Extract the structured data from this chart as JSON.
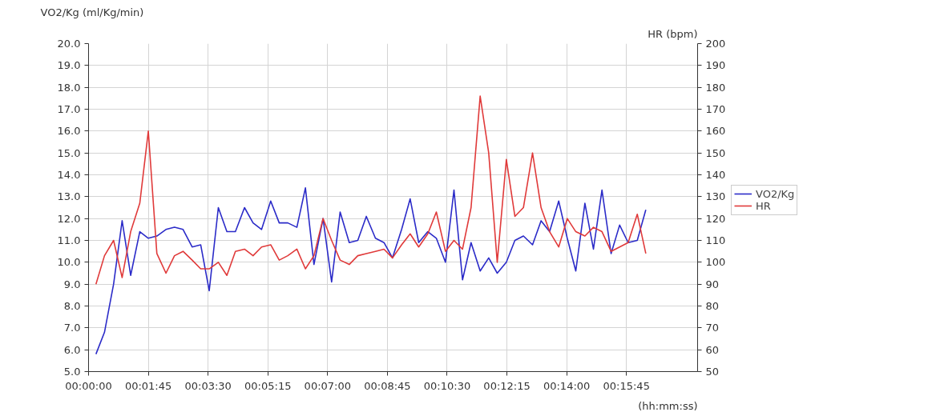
{
  "chart_data": {
    "type": "line",
    "xlabel": "(hh:mm:ss)",
    "ylabel": "VO2/Kg (ml/Kg/min)",
    "y2label": "HR (bpm)",
    "x": [
      13,
      28,
      44,
      59,
      74,
      90,
      105,
      120,
      136,
      151,
      166,
      182,
      197,
      212,
      228,
      243,
      258,
      274,
      289,
      304,
      320,
      335,
      350,
      366,
      381,
      396,
      412,
      427,
      442,
      458,
      473,
      488,
      504,
      519,
      534,
      550,
      565,
      580,
      596,
      611,
      627,
      642,
      657,
      672,
      688,
      703,
      718,
      734,
      749,
      764,
      780,
      795,
      810,
      826,
      841,
      856,
      872,
      887,
      902,
      918,
      933,
      948,
      964,
      979
    ],
    "series": [
      {
        "name": "VO2/Kg",
        "color": "#2b2bc8",
        "values": [
          5.8,
          6.8,
          9.0,
          11.9,
          9.4,
          11.4,
          11.1,
          11.2,
          11.5,
          11.6,
          11.5,
          10.7,
          10.8,
          8.7,
          12.5,
          11.4,
          11.4,
          12.5,
          11.8,
          11.5,
          12.8,
          11.8,
          11.8,
          11.6,
          13.4,
          9.9,
          12.0,
          9.1,
          12.3,
          10.9,
          11.0,
          12.1,
          11.1,
          10.9,
          10.2,
          11.5,
          12.9,
          10.9,
          11.4,
          11.1,
          10.0,
          13.3,
          9.2,
          10.9,
          9.6,
          10.2,
          9.5,
          10.0,
          11.0,
          11.2,
          10.8,
          11.9,
          11.4,
          12.8,
          11.1,
          9.6,
          12.7,
          10.6,
          13.3,
          10.4,
          11.7,
          10.9,
          11.0,
          12.4
        ]
      },
      {
        "name": "HR",
        "color": "#e03a3a",
        "axis": "y2",
        "values": [
          90,
          103,
          110,
          93,
          114,
          127,
          160,
          104,
          95,
          103,
          105,
          101,
          97,
          97,
          100,
          94,
          105,
          106,
          103,
          107,
          108,
          101,
          103,
          106,
          97,
          103,
          120,
          110,
          101,
          99,
          103,
          104,
          105,
          106,
          102,
          108,
          113,
          107,
          113,
          123,
          105,
          110,
          106,
          125,
          176,
          150,
          100,
          147,
          121,
          125,
          150,
          125,
          114,
          107,
          120,
          114,
          112,
          116,
          114,
          105,
          107,
          109,
          122,
          104
        ]
      }
    ],
    "xlim": [
      0,
      1070
    ],
    "xticks": [
      {
        "value": 0,
        "label": "00:00:00"
      },
      {
        "value": 105,
        "label": "00:01:45"
      },
      {
        "value": 210,
        "label": "00:03:30"
      },
      {
        "value": 315,
        "label": "00:05:15"
      },
      {
        "value": 420,
        "label": "00:07:00"
      },
      {
        "value": 525,
        "label": "00:08:45"
      },
      {
        "value": 630,
        "label": "00:10:30"
      },
      {
        "value": 735,
        "label": "00:12:15"
      },
      {
        "value": 840,
        "label": "00:14:00"
      },
      {
        "value": 945,
        "label": "00:15:45"
      }
    ],
    "ylim": [
      5,
      20
    ],
    "yticks": [
      {
        "value": 5,
        "label": "5.0"
      },
      {
        "value": 6,
        "label": "6.0"
      },
      {
        "value": 7,
        "label": "7.0"
      },
      {
        "value": 8,
        "label": "8.0"
      },
      {
        "value": 9,
        "label": "9.0"
      },
      {
        "value": 10,
        "label": "10.0"
      },
      {
        "value": 11,
        "label": "11.0"
      },
      {
        "value": 12,
        "label": "12.0"
      },
      {
        "value": 13,
        "label": "13.0"
      },
      {
        "value": 14,
        "label": "14.0"
      },
      {
        "value": 15,
        "label": "15.0"
      },
      {
        "value": 16,
        "label": "16.0"
      },
      {
        "value": 17,
        "label": "17.0"
      },
      {
        "value": 18,
        "label": "18.0"
      },
      {
        "value": 19,
        "label": "19.0"
      },
      {
        "value": 20,
        "label": "20.0"
      }
    ],
    "y2lim": [
      50,
      200
    ],
    "y2ticks": [
      50,
      60,
      70,
      80,
      90,
      100,
      110,
      120,
      130,
      140,
      150,
      160,
      170,
      180,
      190,
      200
    ],
    "grid": true,
    "legend": "right",
    "marker": "none",
    "line_style": "solid"
  }
}
